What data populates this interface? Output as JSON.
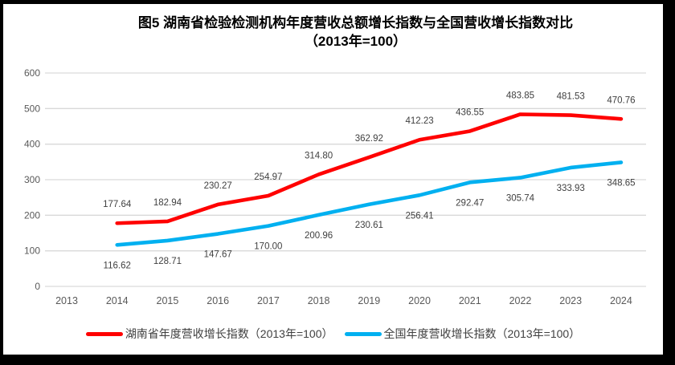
{
  "title": {
    "line1": "图5 湖南省检验检测机构年度营收总额增长指数与全国营收增长指数对比",
    "line2": "（2013年=100）"
  },
  "colors": {
    "grid": "#D9D9D9",
    "axis_text": "#595959",
    "data_label": "#404040",
    "title_text": "#000000",
    "frame": "#000000",
    "hunan_line": "#FF0000",
    "national_line": "#00B0F0"
  },
  "chart_data": {
    "type": "line",
    "title": "图5 湖南省检验检测机构年度营收总额增长指数与全国营收增长指数对比（2013年=100）",
    "x_categories": [
      "2013",
      "2014",
      "2015",
      "2016",
      "2017",
      "2018",
      "2019",
      "2020",
      "2021",
      "2022",
      "2023",
      "2024"
    ],
    "xlabel": "",
    "ylabel": "",
    "ylim": [
      0,
      600
    ],
    "yticks": [
      "0",
      "100",
      "200",
      "300",
      "400",
      "500",
      "600"
    ],
    "grid": "horizontal",
    "legend_position": "bottom",
    "series": [
      {
        "name": "湖南省年度营收增长指数（2013年=100）",
        "color": "#FF0000",
        "label_position": "above",
        "years": [
          2014,
          2015,
          2016,
          2017,
          2018,
          2019,
          2020,
          2021,
          2022,
          2023,
          2024
        ],
        "values": [
          177.64,
          182.94,
          230.27,
          254.97,
          314.8,
          362.92,
          412.23,
          436.55,
          483.85,
          481.53,
          470.76
        ],
        "labels": [
          "177.64",
          "182.94",
          "230.27",
          "254.97",
          "314.80",
          "362.92",
          "412.23",
          "436.55",
          "483.85",
          "481.53",
          "470.76"
        ]
      },
      {
        "name": "全国年度营收增长指数（2013年=100）",
        "color": "#00B0F0",
        "label_position": "below",
        "years": [
          2014,
          2015,
          2016,
          2017,
          2018,
          2019,
          2020,
          2021,
          2022,
          2023,
          2024
        ],
        "values": [
          116.62,
          128.71,
          147.67,
          170.0,
          200.96,
          230.61,
          256.41,
          292.47,
          305.74,
          333.93,
          348.65
        ],
        "labels": [
          "116.62",
          "128.71",
          "147.67",
          "170.00",
          "200.96",
          "230.61",
          "256.41",
          "292.47",
          "305.74",
          "333.93",
          "348.65"
        ]
      }
    ]
  }
}
